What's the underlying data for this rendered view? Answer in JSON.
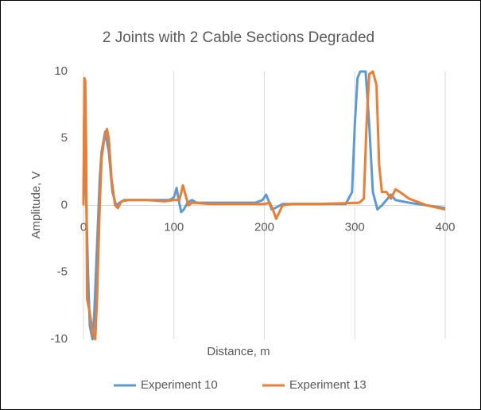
{
  "chart_data": {
    "type": "line",
    "title": "2 Joints with 2 Cable Sections Degraded",
    "x_label": "Distance, m",
    "y_label": "Amplitude, V",
    "xlim": [
      0,
      400
    ],
    "xticks": [
      0,
      100,
      200,
      300,
      400
    ],
    "ylim": [
      -10,
      10
    ],
    "yticks": [
      -10,
      -5,
      0,
      5,
      10
    ],
    "grid": true,
    "legend": "bottom",
    "series": [
      {
        "name": "Experiment 10",
        "color": "#5b9bd5",
        "x": [
          0,
          1,
          2,
          3,
          5,
          7,
          10,
          12,
          15,
          18,
          20,
          24,
          28,
          32,
          36,
          40,
          45,
          60,
          80,
          95,
          100,
          103,
          105,
          108,
          111,
          115,
          120,
          125,
          150,
          190,
          198,
          202,
          205,
          208,
          212,
          220,
          250,
          290,
          297,
          300,
          303,
          306,
          312,
          316,
          320,
          325,
          330,
          340,
          345,
          360,
          380,
          400
        ],
        "values": [
          0,
          8,
          3,
          0.5,
          -5,
          -9,
          -10,
          -8,
          -3,
          2,
          4,
          5.5,
          4,
          1,
          0,
          0.2,
          0.4,
          0.4,
          0.4,
          0.4,
          0.6,
          1.3,
          0.5,
          -0.5,
          -0.3,
          0.2,
          0.4,
          0.2,
          0.2,
          0.2,
          0.4,
          0.8,
          0.3,
          -0.3,
          -0.2,
          0.1,
          0.1,
          0.1,
          1,
          6,
          9.5,
          10,
          10,
          6,
          1,
          -0.3,
          0,
          0.8,
          0.4,
          0.2,
          0,
          -0.2
        ]
      },
      {
        "name": "Experiment 13",
        "color": "#ed7d31",
        "x": [
          0,
          1,
          2,
          3,
          4,
          7,
          10,
          13,
          15,
          18,
          20,
          23,
          26,
          28,
          31,
          35,
          38,
          42,
          50,
          70,
          90,
          100,
          106,
          110,
          112,
          116,
          120,
          140,
          200,
          206,
          210,
          213,
          216,
          220,
          230,
          260,
          305,
          310,
          313,
          316,
          320,
          324,
          327,
          330,
          335,
          340,
          345,
          350,
          360,
          380,
          400
        ],
        "values": [
          0,
          9.5,
          9.3,
          4,
          -7,
          -8,
          -9.5,
          -10,
          -7,
          0,
          3.5,
          5,
          5.7,
          5,
          2,
          0,
          -0.2,
          0.3,
          0.4,
          0.4,
          0.3,
          0.4,
          0.4,
          1.5,
          1,
          0,
          0.2,
          0.1,
          0.1,
          0.2,
          -0.4,
          -1,
          -0.6,
          0,
          0.1,
          0.1,
          0.2,
          0.5,
          6,
          9.8,
          10,
          9,
          3,
          1,
          1,
          0.5,
          1.2,
          1,
          0.5,
          0,
          -0.3
        ]
      }
    ]
  }
}
